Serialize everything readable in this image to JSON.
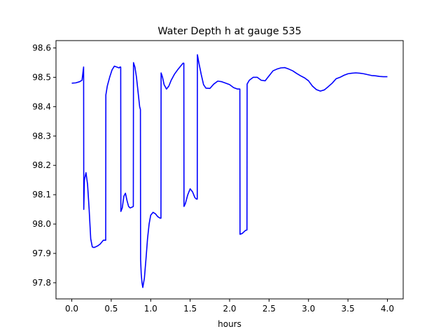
{
  "chart_data": {
    "type": "line",
    "title": "Water Depth h at gauge 535",
    "xlabel": "hours",
    "ylabel": "",
    "xlim": [
      -0.2,
      4.2
    ],
    "ylim": [
      97.745,
      98.625
    ],
    "grid": false,
    "x_ticks": [
      "0.0",
      "0.5",
      "1.0",
      "1.5",
      "2.0",
      "2.5",
      "3.0",
      "3.5",
      "4.0"
    ],
    "y_ticks": [
      "97.8",
      "97.9",
      "98.0",
      "98.1",
      "98.2",
      "98.3",
      "98.4",
      "98.5",
      "98.6"
    ],
    "series": [
      {
        "color": "#0000ff",
        "x": [
          0.0,
          0.05,
          0.1,
          0.13,
          0.15,
          0.152,
          0.16,
          0.18,
          0.2,
          0.22,
          0.24,
          0.26,
          0.28,
          0.3,
          0.33,
          0.36,
          0.4,
          0.43,
          0.432,
          0.45,
          0.48,
          0.51,
          0.54,
          0.57,
          0.6,
          0.61,
          0.62,
          0.622,
          0.64,
          0.66,
          0.68,
          0.7,
          0.72,
          0.74,
          0.76,
          0.78,
          0.782,
          0.8,
          0.82,
          0.84,
          0.86,
          0.87,
          0.872,
          0.88,
          0.89,
          0.9,
          0.92,
          0.94,
          0.96,
          0.98,
          1.0,
          1.03,
          1.06,
          1.09,
          1.12,
          1.13,
          1.132,
          1.15,
          1.17,
          1.2,
          1.23,
          1.26,
          1.3,
          1.34,
          1.37,
          1.41,
          1.42,
          1.422,
          1.44,
          1.47,
          1.5,
          1.53,
          1.56,
          1.58,
          1.59,
          1.592,
          1.61,
          1.64,
          1.67,
          1.7,
          1.75,
          1.8,
          1.85,
          1.9,
          1.95,
          2.0,
          2.05,
          2.1,
          2.13,
          2.132,
          2.16,
          2.2,
          2.22,
          2.222,
          2.25,
          2.3,
          2.35,
          2.4,
          2.45,
          2.5,
          2.55,
          2.6,
          2.65,
          2.7,
          2.75,
          2.8,
          2.85,
          2.9,
          2.95,
          3.0,
          3.05,
          3.1,
          3.15,
          3.2,
          3.25,
          3.3,
          3.35,
          3.4,
          3.45,
          3.5,
          3.55,
          3.6,
          3.65,
          3.7,
          3.75,
          3.8,
          3.85,
          3.9,
          3.95,
          4.0
        ],
        "y": [
          98.48,
          98.481,
          98.485,
          98.49,
          98.535,
          98.05,
          98.15,
          98.175,
          98.135,
          98.05,
          97.95,
          97.922,
          97.92,
          97.922,
          97.926,
          97.932,
          97.945,
          97.945,
          98.44,
          98.47,
          98.5,
          98.525,
          98.538,
          98.535,
          98.532,
          98.535,
          98.535,
          98.043,
          98.055,
          98.095,
          98.105,
          98.08,
          98.06,
          98.055,
          98.057,
          98.06,
          98.55,
          98.535,
          98.5,
          98.45,
          98.4,
          98.39,
          97.88,
          97.83,
          97.8,
          97.784,
          97.815,
          97.88,
          97.95,
          98.0,
          98.03,
          98.04,
          98.035,
          98.025,
          98.02,
          98.02,
          98.515,
          98.5,
          98.475,
          98.46,
          98.47,
          98.49,
          98.51,
          98.525,
          98.535,
          98.548,
          98.548,
          98.06,
          98.07,
          98.1,
          98.12,
          98.11,
          98.09,
          98.085,
          98.085,
          98.577,
          98.55,
          98.51,
          98.475,
          98.463,
          98.462,
          98.477,
          98.487,
          98.485,
          98.48,
          98.475,
          98.465,
          98.46,
          98.46,
          97.965,
          97.968,
          97.978,
          97.98,
          98.477,
          98.49,
          98.5,
          98.5,
          98.49,
          98.488,
          98.505,
          98.522,
          98.528,
          98.532,
          98.533,
          98.528,
          98.522,
          98.513,
          98.505,
          98.498,
          98.488,
          98.47,
          98.458,
          98.453,
          98.457,
          98.468,
          98.48,
          98.495,
          98.5,
          98.507,
          98.512,
          98.514,
          98.515,
          98.514,
          98.512,
          98.509,
          98.506,
          98.505,
          98.503,
          98.502,
          98.502
        ]
      }
    ]
  }
}
